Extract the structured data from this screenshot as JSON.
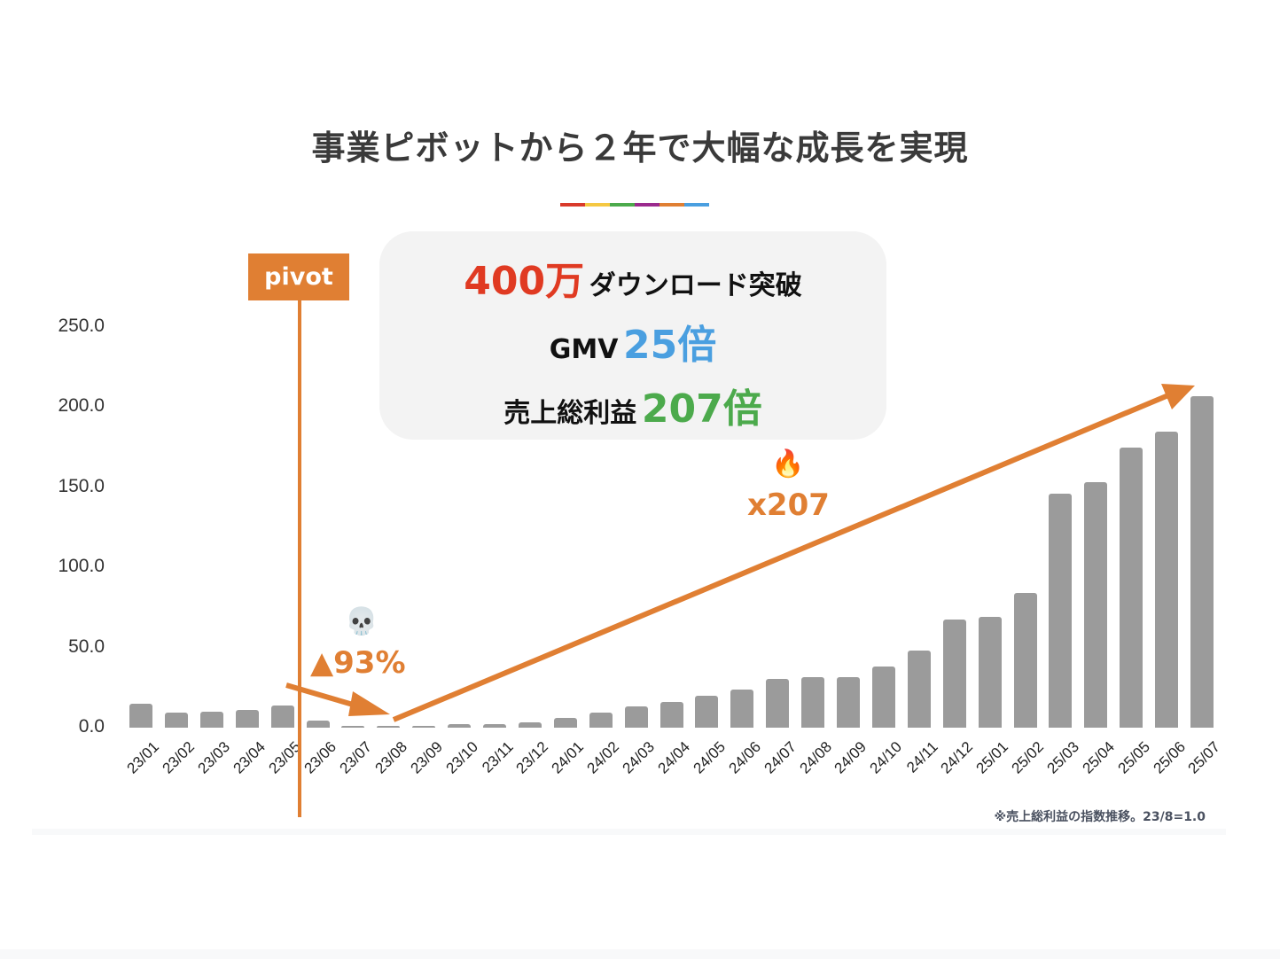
{
  "title": "事業ピボットから２年で大幅な成長を実現",
  "divider_colors": [
    "#d93a2b",
    "#f5c842",
    "#4caa4c",
    "#9b2a8e",
    "#e07f33",
    "#4a9fe0"
  ],
  "highlights": {
    "downloads": {
      "value": "400万",
      "label": "ダウンロード突破",
      "value_color": "#e03a22"
    },
    "gmv": {
      "label": "GMV",
      "value": "25倍",
      "value_color": "#4a9fe0"
    },
    "gross_profit": {
      "label": "売上総利益",
      "value": "207倍",
      "value_color": "#4caa4c"
    }
  },
  "annotations": {
    "pivot_label": "pivot",
    "drop_label": "▲93%",
    "drop_icon": "skull-icon",
    "drop_emoji": "💀",
    "growth_label": "x207",
    "growth_icon": "fire-icon",
    "growth_emoji": "🔥",
    "accent_color": "#e07f33"
  },
  "footnote": "※売上総利益の指数推移。23/8=1.0",
  "chart_data": {
    "type": "bar",
    "title": "事業ピボットから２年で大幅な成長を実現",
    "xlabel": "",
    "ylabel": "",
    "ylim": [
      0,
      250
    ],
    "yticks": [
      "0.0",
      "50.0",
      "100.0",
      "150.0",
      "200.0",
      "250.0"
    ],
    "grid": false,
    "legend": null,
    "bar_color": "#9b9b9b",
    "categories": [
      "23/01",
      "23/02",
      "23/03",
      "23/04",
      "23/05",
      "23/06",
      "23/07",
      "23/08",
      "23/09",
      "23/10",
      "23/11",
      "23/12",
      "24/01",
      "24/02",
      "24/03",
      "24/04",
      "24/05",
      "24/06",
      "24/07",
      "24/08",
      "24/09",
      "24/10",
      "24/11",
      "24/12",
      "25/01",
      "25/02",
      "25/03",
      "25/04",
      "25/05",
      "25/06",
      "25/07"
    ],
    "values": [
      15,
      9.5,
      10,
      11,
      14,
      4.5,
      1.2,
      1.0,
      1.3,
      2.2,
      2.3,
      3.3,
      6,
      9.2,
      13,
      16,
      20,
      24,
      30.5,
      31.5,
      31.5,
      38,
      48,
      67.5,
      69,
      84,
      146,
      153,
      175,
      185,
      207
    ],
    "annotations": [
      {
        "text": "pivot",
        "at": "23/05-23/06",
        "kind": "vertical line"
      },
      {
        "text": "▲93%",
        "from": "23/06",
        "to": "23/08",
        "kind": "down arrow"
      },
      {
        "text": "x207",
        "from": "23/08",
        "to": "25/07",
        "kind": "up arrow"
      }
    ],
    "note": "※売上総利益の指数推移。23/8=1.0"
  }
}
